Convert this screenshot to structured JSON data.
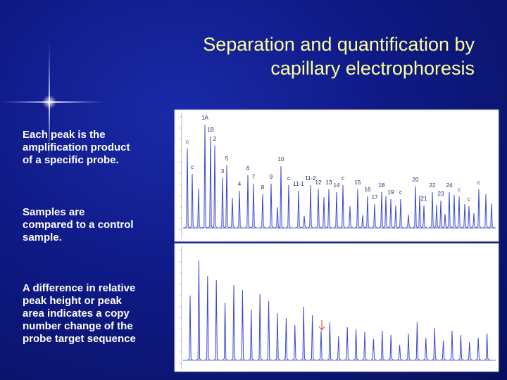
{
  "title": [
    "Separation and quantification by",
    "capillary electrophoresis"
  ],
  "paragraphs": [
    [
      "Each peak is the",
      "amplification product",
      "of a specific probe."
    ],
    [
      "Samples are",
      "compared to a control",
      "sample."
    ],
    [
      "A difference in relative",
      "peak height or peak",
      "area indicates a copy",
      "number change of the",
      "probe target sequence"
    ]
  ],
  "peak_labels": [
    "c",
    "1A",
    "1B",
    "2",
    "c",
    "3",
    "5",
    "4",
    "6",
    "7",
    "8",
    "9",
    "10",
    "c",
    "11-1",
    "11-2",
    "12",
    "13",
    "14",
    "c",
    "15",
    "16",
    "17",
    "18",
    "19",
    "c",
    "20",
    "21",
    "22",
    "23",
    "24",
    "c",
    "c",
    "c"
  ]
}
